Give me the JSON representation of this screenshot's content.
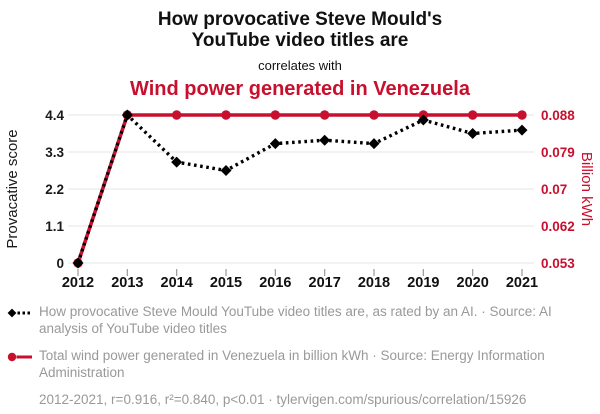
{
  "header": {
    "title_lines": [
      "How provocative Steve Mould's",
      "YouTube video titles are"
    ],
    "connector": "correlates with",
    "title2": "Wind power generated in Venezuela"
  },
  "colors": {
    "accent_red": "#c8102e",
    "text_black": "#1a1a1a",
    "muted_gray": "#999999",
    "gridline": "#ebebeb"
  },
  "chart_data": {
    "type": "line",
    "x": [
      2012,
      2013,
      2014,
      2015,
      2016,
      2017,
      2018,
      2019,
      2020,
      2021
    ],
    "x_ticks": [
      "2012",
      "2013",
      "2014",
      "2015",
      "2016",
      "2017",
      "2018",
      "2019",
      "2020",
      "2021"
    ],
    "series": [
      {
        "name": "How provocative Steve Mould YouTube video titles are",
        "axis": "left",
        "color": "#000000",
        "line_style": "dashed",
        "marker": "diamond",
        "values": [
          0,
          4.4,
          3.0,
          2.75,
          3.55,
          3.65,
          3.55,
          4.25,
          3.85,
          3.95
        ]
      },
      {
        "name": "Total wind power generated in Venezuela",
        "axis": "right",
        "color": "#c8102e",
        "line_style": "solid",
        "marker": "circle",
        "values": [
          0.053,
          0.088,
          0.088,
          0.088,
          0.088,
          0.088,
          0.088,
          0.088,
          0.088,
          0.088
        ]
      }
    ],
    "left_axis": {
      "label": "Provacative score",
      "ticks": [
        "0",
        "1.1",
        "2.2",
        "3.3",
        "4.4"
      ],
      "range": [
        0,
        4.4
      ],
      "color": "#1a1a1a"
    },
    "right_axis": {
      "label": "Billion kWh",
      "ticks": [
        "0.053",
        "0.062",
        "0.07",
        "0.079",
        "0.088"
      ],
      "range": [
        0.053,
        0.088
      ],
      "color": "#c8102e"
    },
    "grid": "horizontal",
    "legend_position": "bottom"
  },
  "legend": {
    "items": [
      {
        "marker": "diamond-dashed",
        "color": "#000000",
        "text": "How provocative Steve Mould YouTube video titles are, as rated by an AI. · Source: AI analysis of YouTube video titles"
      },
      {
        "marker": "circle-solid",
        "color": "#c8102e",
        "text": "Total wind power generated in Venezuela in billion kWh · Source: Energy Information Administration"
      }
    ],
    "footnote": "2012-2021, r=0.916, r²=0.840, p<0.01 · tylervigen.com/spurious/correlation/15926"
  }
}
